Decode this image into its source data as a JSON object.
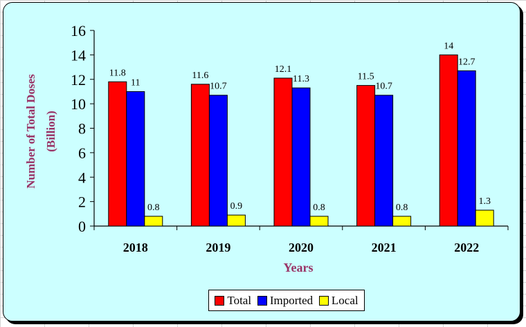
{
  "chart_data": {
    "type": "bar",
    "categories": [
      "2018",
      "2019",
      "2020",
      "2021",
      "2022"
    ],
    "series": [
      {
        "name": "Total",
        "values": [
          11.8,
          11.6,
          12.1,
          11.5,
          14
        ],
        "labels": [
          "11.8",
          "11.6",
          "12.1",
          "11.5",
          "14"
        ],
        "color": "#ff0000"
      },
      {
        "name": "Imported",
        "values": [
          11,
          10.7,
          11.3,
          10.7,
          12.7
        ],
        "labels": [
          "11",
          "10.7",
          "11.3",
          "10.7",
          "12.7"
        ],
        "color": "#0000ff"
      },
      {
        "name": "Local",
        "values": [
          0.8,
          0.9,
          0.8,
          0.8,
          1.3
        ],
        "labels": [
          "0.8",
          "0.9",
          "0.8",
          "0.8",
          "1.3"
        ],
        "color": "#ffff00"
      }
    ],
    "ylabel_lines": [
      "Number of Total Doses",
      "(Billion)"
    ],
    "xlabel": "Years",
    "yticks": [
      "0",
      "2",
      "4",
      "6",
      "8",
      "10",
      "12",
      "14",
      "16"
    ],
    "ylim": [
      0,
      16
    ],
    "grid": false,
    "legend_position": "bottom-center",
    "label_color": "#993366",
    "background_color": "#ccffff"
  }
}
